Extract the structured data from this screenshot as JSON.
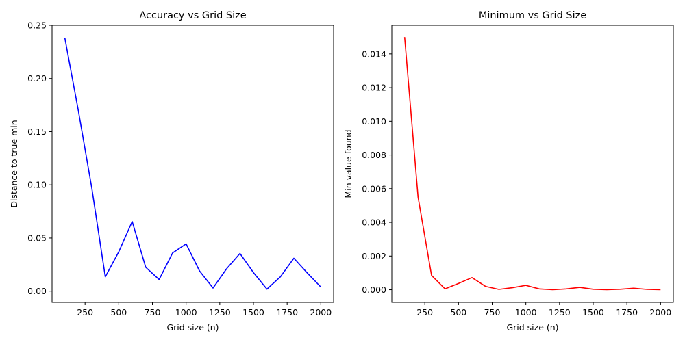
{
  "chart_data": [
    {
      "type": "line",
      "title": "Accuracy vs Grid Size",
      "xlabel": "Grid size (n)",
      "ylabel": "Distance to true min",
      "x_ticks": [
        250,
        500,
        750,
        1000,
        1250,
        1500,
        1750,
        2000
      ],
      "x_tick_labels": [
        "250",
        "500",
        "750",
        "1000",
        "1250",
        "1500",
        "1750",
        "2000"
      ],
      "y_ticks": [
        0.0,
        0.05,
        0.1,
        0.15,
        0.2,
        0.25
      ],
      "y_tick_labels": [
        "0.00",
        "0.05",
        "0.10",
        "0.15",
        "0.20",
        "0.25"
      ],
      "xlim": [
        5,
        2095
      ],
      "ylim": [
        -0.0105,
        0.25
      ],
      "grid": false,
      "series": [
        {
          "color": "#0000ff",
          "x": [
            100,
            200,
            300,
            400,
            500,
            600,
            700,
            800,
            900,
            1000,
            1100,
            1200,
            1300,
            1400,
            1500,
            1600,
            1700,
            1800,
            1900,
            2000
          ],
          "values": [
            0.238,
            0.17,
            0.097,
            0.0135,
            0.037,
            0.0655,
            0.0225,
            0.011,
            0.036,
            0.0445,
            0.019,
            0.003,
            0.021,
            0.0355,
            0.0175,
            0.002,
            0.0135,
            0.031,
            0.017,
            0.004
          ]
        }
      ]
    },
    {
      "type": "line",
      "title": "Minimum vs Grid Size",
      "xlabel": "Grid size (n)",
      "ylabel": "Min value found",
      "x_ticks": [
        250,
        500,
        750,
        1000,
        1250,
        1500,
        1750,
        2000
      ],
      "x_tick_labels": [
        "250",
        "500",
        "750",
        "1000",
        "1250",
        "1500",
        "1750",
        "2000"
      ],
      "y_ticks": [
        0.0,
        0.002,
        0.004,
        0.006,
        0.008,
        0.01,
        0.012,
        0.014
      ],
      "y_tick_labels": [
        "0.000",
        "0.002",
        "0.004",
        "0.006",
        "0.008",
        "0.010",
        "0.012",
        "0.014"
      ],
      "xlim": [
        5,
        2095
      ],
      "ylim": [
        -0.00075,
        0.0157
      ],
      "grid": false,
      "series": [
        {
          "color": "#ff0000",
          "x": [
            100,
            200,
            300,
            400,
            500,
            600,
            700,
            800,
            900,
            1000,
            1100,
            1200,
            1300,
            1400,
            1500,
            1600,
            1700,
            1800,
            1900,
            2000
          ],
          "values": [
            0.015,
            0.0055,
            0.00085,
            5e-05,
            0.00037,
            0.00072,
            0.0002,
            2e-05,
            0.00012,
            0.00026,
            5e-05,
            0.0,
            5e-05,
            0.00014,
            3e-05,
            0.0,
            3e-05,
            9e-05,
            2e-05,
            0.0
          ]
        }
      ]
    }
  ]
}
